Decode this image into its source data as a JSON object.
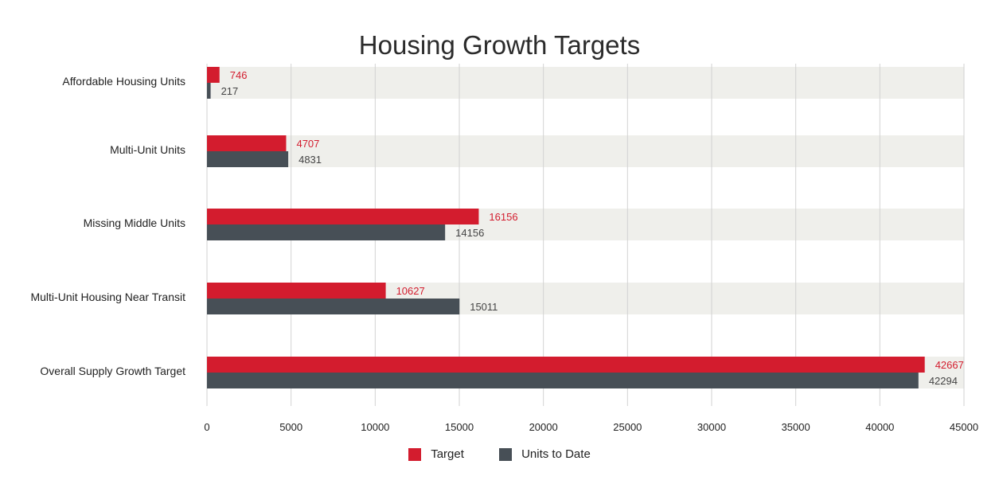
{
  "chart_data": {
    "type": "bar",
    "orientation": "horizontal",
    "title": "Housing Growth Targets",
    "categories": [
      "Affordable Housing Units",
      "Multi-Unit Units",
      "Missing Middle Units",
      "Multi-Unit Housing Near Transit",
      "Overall Supply Growth Target"
    ],
    "series": [
      {
        "name": "Target",
        "color": "#d31c2e",
        "values": [
          746,
          4707,
          16156,
          10627,
          42667
        ],
        "labels": [
          "746",
          "4707",
          "16156",
          "10627",
          "42667"
        ]
      },
      {
        "name": "Units to Date",
        "color": "#474f56",
        "values": [
          217,
          4831,
          14156,
          15011,
          42294
        ],
        "labels": [
          "217",
          "4831",
          "14156",
          "15011",
          "42294"
        ]
      }
    ],
    "xlim": [
      0,
      45000
    ],
    "xticks": [
      0,
      5000,
      10000,
      15000,
      20000,
      25000,
      30000,
      35000,
      40000,
      45000
    ],
    "xtick_labels": [
      "0",
      "5000",
      "10000",
      "15000",
      "20000",
      "25000",
      "30000",
      "35000",
      "40000",
      "45000"
    ],
    "grid": true,
    "legend": "bottom-center"
  }
}
